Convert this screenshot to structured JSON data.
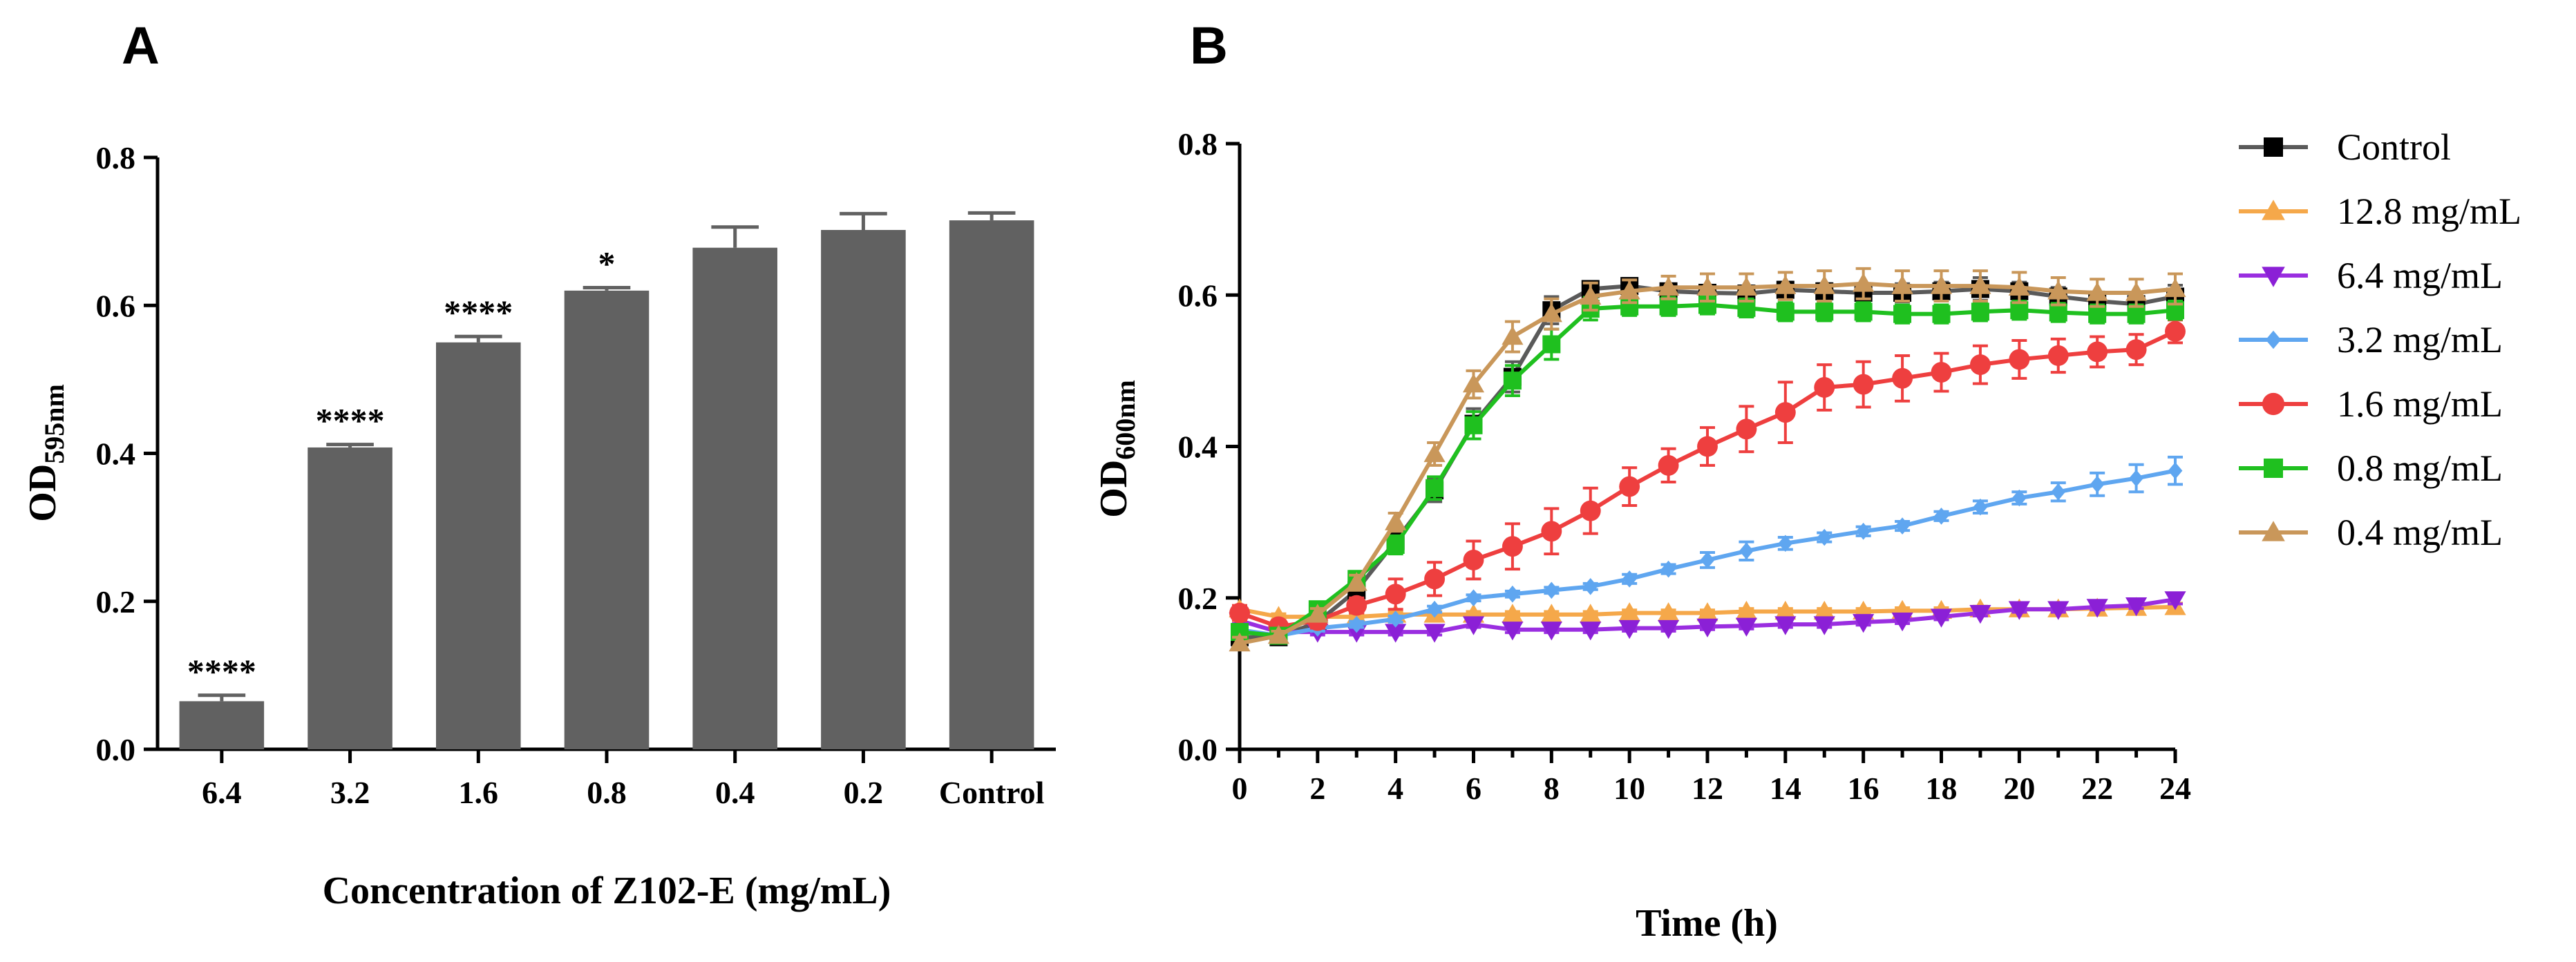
{
  "chart_data": [
    {
      "panel_label": "A",
      "type": "bar",
      "categories": [
        "6.4",
        "3.2",
        "1.6",
        "0.8",
        "0.4",
        "0.2",
        "Control"
      ],
      "values": [
        0.065,
        0.408,
        0.55,
        0.62,
        0.678,
        0.702,
        0.715
      ],
      "errors": [
        0.008,
        0.004,
        0.008,
        0.004,
        0.028,
        0.022,
        0.01
      ],
      "significance": [
        "****",
        "****",
        "****",
        "*",
        "",
        "",
        ""
      ],
      "bar_color": "#616161",
      "xlabel": "Concentration of Z102-E (mg/mL)",
      "ylabel_main": "OD",
      "ylabel_sub": "595nm",
      "ylim": [
        0,
        0.8
      ],
      "yticks": [
        "0.0",
        "0.2",
        "0.4",
        "0.6",
        "0.8"
      ]
    },
    {
      "panel_label": "B",
      "type": "line",
      "x": [
        0,
        1,
        2,
        3,
        4,
        5,
        6,
        7,
        8,
        9,
        10,
        11,
        12,
        13,
        14,
        15,
        16,
        17,
        18,
        19,
        20,
        21,
        22,
        23,
        24
      ],
      "xticks": [
        "0",
        "2",
        "4",
        "6",
        "8",
        "10",
        "12",
        "14",
        "16",
        "18",
        "20",
        "22",
        "24"
      ],
      "yticks": [
        "0.0",
        "0.2",
        "0.4",
        "0.6",
        "0.8"
      ],
      "xlim": [
        0,
        24
      ],
      "ylim": [
        0,
        0.8
      ],
      "xlabel": "Time (h)",
      "ylabel_main": "OD",
      "ylabel_sub": "600nm",
      "series": [
        {
          "name": "Control",
          "color": "#000000",
          "line_color": "#5a5a5a",
          "marker": "square",
          "values": [
            0.148,
            0.148,
            0.168,
            0.21,
            0.275,
            0.342,
            0.43,
            0.492,
            0.58,
            0.608,
            0.612,
            0.605,
            0.603,
            0.602,
            0.607,
            0.605,
            0.603,
            0.603,
            0.605,
            0.608,
            0.605,
            0.598,
            0.592,
            0.588,
            0.598
          ],
          "errors": [
            0.008,
            0.006,
            0.01,
            0.01,
            0.012,
            0.015,
            0.02,
            0.02,
            0.018,
            0.01,
            0.008,
            0.008,
            0.008,
            0.01,
            0.01,
            0.01,
            0.012,
            0.012,
            0.012,
            0.015,
            0.012,
            0.012,
            0.012,
            0.015,
            0.015
          ]
        },
        {
          "name": "12.8 mg/mL",
          "color": "#f5a84a",
          "line_color": "#f5a84a",
          "marker": "triangle-up",
          "values": [
            0.185,
            0.175,
            0.175,
            0.175,
            0.178,
            0.178,
            0.178,
            0.178,
            0.178,
            0.178,
            0.18,
            0.18,
            0.18,
            0.182,
            0.182,
            0.182,
            0.182,
            0.183,
            0.183,
            0.185,
            0.185,
            0.185,
            0.186,
            0.187,
            0.188
          ],
          "errors": [
            0.005,
            0.004,
            0.004,
            0.004,
            0.004,
            0.004,
            0.004,
            0.004,
            0.004,
            0.004,
            0.004,
            0.004,
            0.004,
            0.004,
            0.004,
            0.004,
            0.004,
            0.004,
            0.004,
            0.004,
            0.004,
            0.004,
            0.004,
            0.004,
            0.005
          ]
        },
        {
          "name": "6.4 mg/mL",
          "color": "#8b20d6",
          "line_color": "#9a2ee0",
          "marker": "triangle-down",
          "values": [
            0.17,
            0.155,
            0.155,
            0.155,
            0.155,
            0.155,
            0.165,
            0.158,
            0.158,
            0.158,
            0.16,
            0.16,
            0.162,
            0.163,
            0.165,
            0.165,
            0.168,
            0.17,
            0.175,
            0.18,
            0.185,
            0.185,
            0.188,
            0.19,
            0.198
          ],
          "errors": [
            0.004,
            0.004,
            0.004,
            0.004,
            0.004,
            0.004,
            0.004,
            0.004,
            0.004,
            0.004,
            0.004,
            0.004,
            0.004,
            0.004,
            0.004,
            0.004,
            0.004,
            0.004,
            0.004,
            0.004,
            0.004,
            0.004,
            0.004,
            0.004,
            0.006
          ]
        },
        {
          "name": "3.2 mg/mL",
          "color": "#5fa6f0",
          "line_color": "#5fa6f0",
          "marker": "diamond",
          "values": [
            0.158,
            0.15,
            0.16,
            0.165,
            0.172,
            0.185,
            0.2,
            0.205,
            0.21,
            0.215,
            0.225,
            0.238,
            0.25,
            0.262,
            0.272,
            0.28,
            0.288,
            0.295,
            0.308,
            0.32,
            0.332,
            0.34,
            0.35,
            0.358,
            0.368
          ],
          "errors": [
            0.004,
            0.004,
            0.004,
            0.004,
            0.004,
            0.004,
            0.004,
            0.004,
            0.004,
            0.004,
            0.006,
            0.006,
            0.01,
            0.012,
            0.008,
            0.006,
            0.006,
            0.006,
            0.006,
            0.008,
            0.008,
            0.012,
            0.015,
            0.018,
            0.018
          ]
        },
        {
          "name": "1.6 mg/mL",
          "color": "#ee3f3f",
          "line_color": "#ee3f3f",
          "marker": "circle",
          "values": [
            0.18,
            0.162,
            0.17,
            0.19,
            0.205,
            0.225,
            0.25,
            0.268,
            0.288,
            0.315,
            0.347,
            0.375,
            0.4,
            0.423,
            0.445,
            0.478,
            0.482,
            0.49,
            0.498,
            0.508,
            0.515,
            0.52,
            0.525,
            0.528,
            0.552
          ],
          "errors": [
            0.01,
            0.008,
            0.01,
            0.01,
            0.02,
            0.022,
            0.025,
            0.03,
            0.03,
            0.03,
            0.025,
            0.022,
            0.025,
            0.03,
            0.04,
            0.03,
            0.03,
            0.03,
            0.025,
            0.025,
            0.025,
            0.022,
            0.02,
            0.02,
            0.015
          ]
        },
        {
          "name": "0.8 mg/mL",
          "color": "#1fc01f",
          "line_color": "#1fc01f",
          "marker": "square",
          "values": [
            0.155,
            0.15,
            0.185,
            0.225,
            0.27,
            0.345,
            0.428,
            0.487,
            0.535,
            0.582,
            0.585,
            0.585,
            0.587,
            0.583,
            0.578,
            0.578,
            0.578,
            0.575,
            0.575,
            0.578,
            0.58,
            0.577,
            0.575,
            0.575,
            0.58
          ],
          "errors": [
            0.006,
            0.006,
            0.008,
            0.01,
            0.012,
            0.015,
            0.018,
            0.02,
            0.02,
            0.015,
            0.012,
            0.012,
            0.012,
            0.012,
            0.012,
            0.012,
            0.012,
            0.012,
            0.012,
            0.012,
            0.012,
            0.012,
            0.012,
            0.012,
            0.012
          ]
        },
        {
          "name": "0.4 mg/mL",
          "color": "#c9975a",
          "line_color": "#c9975a",
          "marker": "triangle-up",
          "values": [
            0.14,
            0.15,
            0.178,
            0.22,
            0.3,
            0.39,
            0.482,
            0.545,
            0.575,
            0.598,
            0.605,
            0.61,
            0.61,
            0.61,
            0.612,
            0.612,
            0.615,
            0.612,
            0.612,
            0.612,
            0.61,
            0.605,
            0.603,
            0.603,
            0.608
          ],
          "errors": [
            0.008,
            0.006,
            0.008,
            0.01,
            0.012,
            0.015,
            0.018,
            0.02,
            0.02,
            0.018,
            0.015,
            0.015,
            0.018,
            0.018,
            0.018,
            0.02,
            0.02,
            0.02,
            0.02,
            0.02,
            0.02,
            0.018,
            0.018,
            0.018,
            0.02
          ]
        }
      ]
    }
  ]
}
